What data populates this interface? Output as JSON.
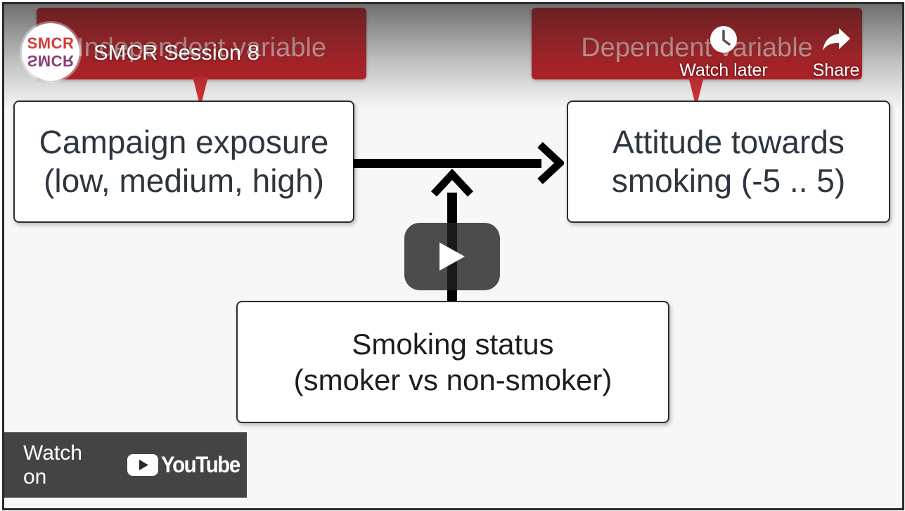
{
  "header": {
    "channel_logo_top": "SMCR",
    "channel_logo_bottom": "SMCR",
    "title": "SMCR Session 8",
    "watch_later_label": "Watch later",
    "share_label": "Share"
  },
  "slide": {
    "callout_left": "Independent variable",
    "callout_right": "Dependent variable",
    "box_left": {
      "line1": "Campaign exposure",
      "line2": "(low, medium, high)"
    },
    "box_right": {
      "line1": "Attitude towards",
      "line2": "smoking (-5 .. 5)"
    },
    "box_bottom": {
      "line1": "Smoking status",
      "line2": "(smoker vs non-smoker)"
    }
  },
  "footer": {
    "watch_on": "Watch on",
    "youtube_word": "YouTube"
  },
  "colors": {
    "callout_red": "#c8262c",
    "youtube_red": "#ff0000",
    "box_text": "#2d3640"
  },
  "icons": [
    "clock-icon",
    "share-arrow-icon",
    "play-icon",
    "youtube-logo-icon"
  ]
}
